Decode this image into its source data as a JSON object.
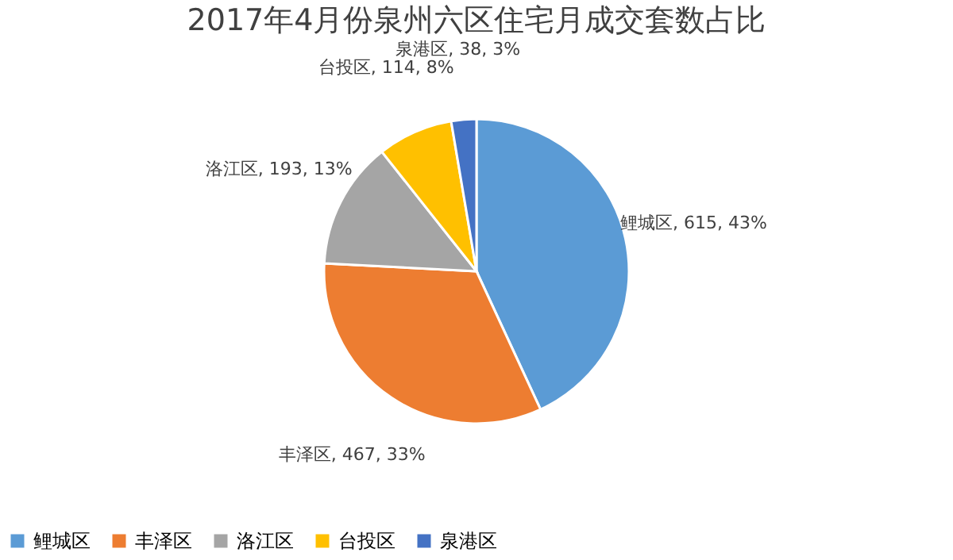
{
  "chart_data": {
    "type": "pie",
    "title": "2017年4月份泉州六区住宅月成交套数占比",
    "categories": [
      "鲤城区",
      "丰泽区",
      "洛江区",
      "台投区",
      "泉港区"
    ],
    "values": [
      615,
      467,
      193,
      114,
      38
    ],
    "colors": [
      "#5b9bd5",
      "#ed7d31",
      "#a5a5a5",
      "#ffc000",
      "#4472c4"
    ],
    "value_labels": [
      "鲤城区, 615, 43%",
      "丰泽区, 467, 33%",
      "洛江区, 193, 13%",
      "台投区, 114, 8%",
      "泉港区, 38, 3%"
    ],
    "legend": "bottom"
  }
}
